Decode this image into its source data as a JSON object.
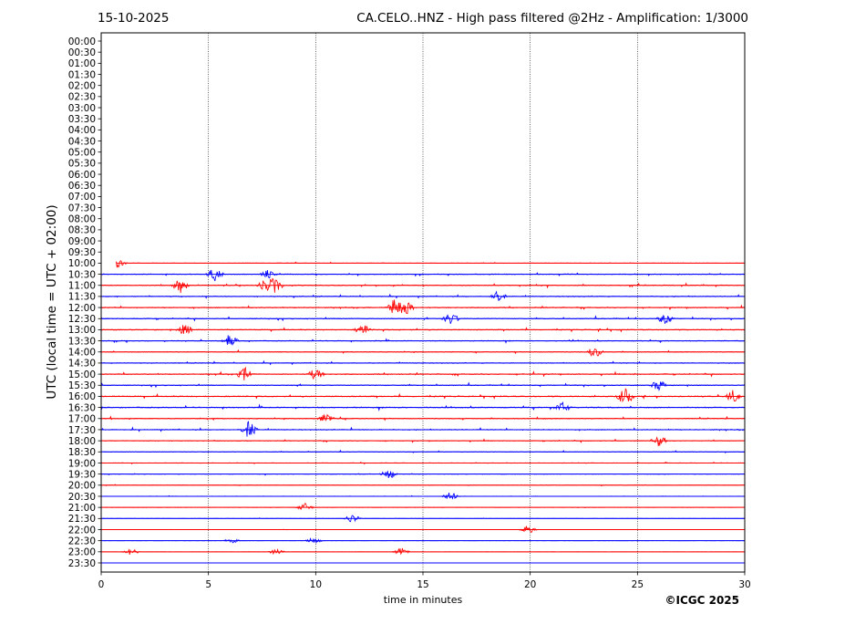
{
  "header": {
    "date": "15-10-2025",
    "title": "CA.CELO..HNZ - High pass filtered @2Hz - Amplification: 1/3000"
  },
  "footer": {
    "copyright": "©ICGC 2025"
  },
  "colors": {
    "odd_trace": "#ff0000",
    "even_trace": "#0000ff",
    "grid": "#000000",
    "axes": "#000000"
  },
  "chart_data": {
    "type": "line",
    "subtype": "helicorder",
    "xlabel": "time in minutes",
    "ylabel": "UTC (local time = UTC + 02:00)",
    "xlim": [
      0,
      30
    ],
    "x_ticks": [
      0,
      5,
      10,
      15,
      20,
      25,
      30
    ],
    "vertical_gridlines_at": [
      5,
      10,
      15,
      20,
      25
    ],
    "grid": "vertical dotted",
    "row_labels": [
      "00:00",
      "00:30",
      "01:00",
      "01:30",
      "02:00",
      "02:30",
      "03:00",
      "03:30",
      "04:00",
      "04:30",
      "05:00",
      "05:30",
      "06:00",
      "06:30",
      "07:00",
      "07:30",
      "08:00",
      "08:30",
      "09:00",
      "09:30",
      "10:00",
      "10:30",
      "11:00",
      "11:30",
      "12:00",
      "12:30",
      "13:00",
      "13:30",
      "14:00",
      "14:30",
      "15:00",
      "15:30",
      "16:00",
      "16:30",
      "17:00",
      "17:30",
      "18:00",
      "18:30",
      "19:00",
      "19:30",
      "20:00",
      "20:30",
      "21:00",
      "21:30",
      "22:00",
      "22:30",
      "23:00",
      "23:30"
    ],
    "traces": [
      {
        "row": "10:00",
        "color": "red",
        "start_min": 0.7,
        "end_min": 30,
        "activity": 0.35,
        "events": [
          [
            0.8,
            0.9
          ]
        ]
      },
      {
        "row": "10:30",
        "color": "blue",
        "start_min": 0,
        "end_min": 30,
        "activity": 0.6,
        "events": [
          [
            5.3,
            1.2
          ],
          [
            7.8,
            0.8
          ]
        ]
      },
      {
        "row": "11:00",
        "color": "red",
        "start_min": 0,
        "end_min": 30,
        "activity": 0.7,
        "events": [
          [
            3.7,
            1.6
          ],
          [
            8.1,
            1.4
          ],
          [
            7.6,
            0.9
          ]
        ]
      },
      {
        "row": "11:30",
        "color": "blue",
        "start_min": 0,
        "end_min": 30,
        "activity": 0.65,
        "events": [
          [
            18.5,
            1.0
          ]
        ]
      },
      {
        "row": "12:00",
        "color": "red",
        "start_min": 0,
        "end_min": 30,
        "activity": 0.7,
        "events": [
          [
            13.7,
            1.8
          ],
          [
            14.2,
            1.3
          ]
        ]
      },
      {
        "row": "12:30",
        "color": "blue",
        "start_min": 0,
        "end_min": 30,
        "activity": 0.7,
        "events": [
          [
            16.3,
            1.1
          ],
          [
            26.3,
            1.0
          ]
        ]
      },
      {
        "row": "13:00",
        "color": "red",
        "start_min": 0,
        "end_min": 30,
        "activity": 0.7,
        "events": [
          [
            3.9,
            1.0
          ],
          [
            12.2,
            1.0
          ]
        ]
      },
      {
        "row": "13:30",
        "color": "blue",
        "start_min": 0,
        "end_min": 30,
        "activity": 0.6,
        "events": [
          [
            6.0,
            1.0
          ]
        ]
      },
      {
        "row": "14:00",
        "color": "red",
        "start_min": 0,
        "end_min": 30,
        "activity": 0.6,
        "events": [
          [
            23.0,
            1.0
          ]
        ]
      },
      {
        "row": "14:30",
        "color": "blue",
        "start_min": 0,
        "end_min": 30,
        "activity": 0.6,
        "events": []
      },
      {
        "row": "15:00",
        "color": "red",
        "start_min": 0,
        "end_min": 30,
        "activity": 0.75,
        "events": [
          [
            6.7,
            1.2
          ],
          [
            10.0,
            1.0
          ]
        ]
      },
      {
        "row": "15:30",
        "color": "blue",
        "start_min": 0,
        "end_min": 30,
        "activity": 0.7,
        "events": [
          [
            26.0,
            1.0
          ]
        ]
      },
      {
        "row": "16:00",
        "color": "red",
        "start_min": 0,
        "end_min": 30,
        "activity": 0.8,
        "events": [
          [
            24.4,
            1.5
          ],
          [
            29.5,
            1.2
          ]
        ]
      },
      {
        "row": "16:30",
        "color": "blue",
        "start_min": 0,
        "end_min": 30,
        "activity": 0.8,
        "events": [
          [
            21.5,
            1.0
          ]
        ]
      },
      {
        "row": "17:00",
        "color": "red",
        "start_min": 0,
        "end_min": 30,
        "activity": 0.7,
        "events": [
          [
            10.5,
            1.0
          ]
        ]
      },
      {
        "row": "17:30",
        "color": "blue",
        "start_min": 0,
        "end_min": 30,
        "activity": 0.7,
        "events": [
          [
            6.9,
            1.6
          ]
        ]
      },
      {
        "row": "18:00",
        "color": "red",
        "start_min": 0,
        "end_min": 30,
        "activity": 0.55,
        "events": [
          [
            26.0,
            1.0
          ]
        ]
      },
      {
        "row": "18:30",
        "color": "blue",
        "start_min": 0,
        "end_min": 30,
        "activity": 0.45,
        "events": []
      },
      {
        "row": "19:00",
        "color": "red",
        "start_min": 0,
        "end_min": 30,
        "activity": 0.4,
        "events": []
      },
      {
        "row": "19:30",
        "color": "blue",
        "start_min": 0,
        "end_min": 30,
        "activity": 0.35,
        "events": [
          [
            13.4,
            0.9
          ]
        ]
      },
      {
        "row": "20:00",
        "color": "red",
        "start_min": 0,
        "end_min": 30,
        "activity": 0.3,
        "events": []
      },
      {
        "row": "20:30",
        "color": "blue",
        "start_min": 0,
        "end_min": 30,
        "activity": 0.3,
        "events": [
          [
            16.3,
            0.8
          ]
        ]
      },
      {
        "row": "21:00",
        "color": "red",
        "start_min": 0,
        "end_min": 30,
        "activity": 0.2,
        "events": [
          [
            9.5,
            0.8
          ]
        ]
      },
      {
        "row": "21:30",
        "color": "blue",
        "start_min": 0,
        "end_min": 30,
        "activity": 0.15,
        "events": [
          [
            11.7,
            0.8
          ]
        ]
      },
      {
        "row": "22:00",
        "color": "red",
        "start_min": 0,
        "end_min": 30,
        "activity": 0.12,
        "events": [
          [
            19.9,
            0.8
          ]
        ]
      },
      {
        "row": "22:30",
        "color": "blue",
        "start_min": 0,
        "end_min": 30,
        "activity": 0.12,
        "events": [
          [
            6.1,
            0.6
          ],
          [
            9.9,
            0.6
          ]
        ]
      },
      {
        "row": "23:00",
        "color": "red",
        "start_min": 0,
        "end_min": 30,
        "activity": 0.12,
        "events": [
          [
            1.4,
            0.6
          ],
          [
            8.2,
            0.6
          ],
          [
            14.0,
            0.7
          ]
        ]
      },
      {
        "row": "23:30",
        "color": "blue",
        "start_min": 0,
        "end_min": 30,
        "activity": 0.0,
        "events": []
      }
    ]
  }
}
